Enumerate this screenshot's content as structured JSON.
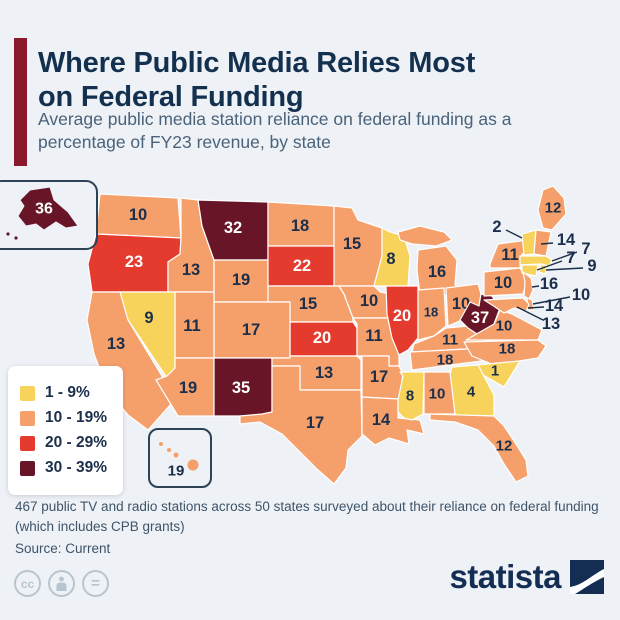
{
  "header": {
    "title": "Where Public Media Relies Most on Federal Funding",
    "subtitle": "Average public media station reliance on federal funding as a percentage of FY23 revenue, by state"
  },
  "legend": {
    "items": [
      {
        "label": "1 - 9%",
        "color": "#F8D35C",
        "min": 0,
        "max": 9
      },
      {
        "label": "10 - 19%",
        "color": "#F5A06B",
        "min": 10,
        "max": 19
      },
      {
        "label": "20 - 29%",
        "color": "#E53A2E",
        "min": 20,
        "max": 29
      },
      {
        "label": "30 - 39%",
        "color": "#671527",
        "min": 30,
        "max": 39
      }
    ]
  },
  "chart_data": {
    "type": "choropleth-map",
    "title": "Where Public Media Relies Most on Federal Funding",
    "unit": "percent of FY23 revenue",
    "states": [
      {
        "id": "WA",
        "name": "Washington",
        "value": 10
      },
      {
        "id": "OR",
        "name": "Oregon",
        "value": 23
      },
      {
        "id": "CA",
        "name": "California",
        "value": 13
      },
      {
        "id": "NV",
        "name": "Nevada",
        "value": 9
      },
      {
        "id": "ID",
        "name": "Idaho",
        "value": 13
      },
      {
        "id": "MT",
        "name": "Montana",
        "value": 32
      },
      {
        "id": "WY",
        "name": "Wyoming",
        "value": 19
      },
      {
        "id": "UT",
        "name": "Utah",
        "value": 11
      },
      {
        "id": "CO",
        "name": "Colorado",
        "value": 17
      },
      {
        "id": "AZ",
        "name": "Arizona",
        "value": 19
      },
      {
        "id": "NM",
        "name": "New Mexico",
        "value": 35
      },
      {
        "id": "ND",
        "name": "North Dakota",
        "value": 18
      },
      {
        "id": "SD",
        "name": "South Dakota",
        "value": 22
      },
      {
        "id": "NE",
        "name": "Nebraska",
        "value": 15
      },
      {
        "id": "KS",
        "name": "Kansas",
        "value": 20
      },
      {
        "id": "OK",
        "name": "Oklahoma",
        "value": 13
      },
      {
        "id": "TX",
        "name": "Texas",
        "value": 17
      },
      {
        "id": "MN",
        "name": "Minnesota",
        "value": 15
      },
      {
        "id": "IA",
        "name": "Iowa",
        "value": 10
      },
      {
        "id": "MO",
        "name": "Missouri",
        "value": 11
      },
      {
        "id": "AR",
        "name": "Arkansas",
        "value": 17
      },
      {
        "id": "LA",
        "name": "Louisiana",
        "value": 14
      },
      {
        "id": "WI",
        "name": "Wisconsin",
        "value": 8
      },
      {
        "id": "IL",
        "name": "Illinois",
        "value": 20
      },
      {
        "id": "MI",
        "name": "Michigan",
        "value": 16
      },
      {
        "id": "IN",
        "name": "Indiana",
        "value": 18
      },
      {
        "id": "OH",
        "name": "Ohio",
        "value": 10
      },
      {
        "id": "KY",
        "name": "Kentucky",
        "value": 11
      },
      {
        "id": "TN",
        "name": "Tennessee",
        "value": 18
      },
      {
        "id": "MS",
        "name": "Mississippi",
        "value": 8
      },
      {
        "id": "AL",
        "name": "Alabama",
        "value": 10
      },
      {
        "id": "GA",
        "name": "Georgia",
        "value": 4
      },
      {
        "id": "SC",
        "name": "South Carolina",
        "value": 1
      },
      {
        "id": "NC",
        "name": "North Carolina",
        "value": 18
      },
      {
        "id": "VA",
        "name": "Virginia",
        "value": 10
      },
      {
        "id": "WV",
        "name": "West Virginia",
        "value": 37
      },
      {
        "id": "FL",
        "name": "Florida",
        "value": 12
      },
      {
        "id": "PA",
        "name": "Pennsylvania",
        "value": 10
      },
      {
        "id": "NY",
        "name": "New York",
        "value": 11
      },
      {
        "id": "ME",
        "name": "Maine",
        "value": 12
      },
      {
        "id": "VT",
        "name": "Vermont",
        "value": 2
      },
      {
        "id": "NH",
        "name": "New Hampshire",
        "value": 14
      },
      {
        "id": "MA",
        "name": "Massachusetts",
        "value": 7
      },
      {
        "id": "CT",
        "name": "Connecticut",
        "value": 7
      },
      {
        "id": "RI",
        "name": "Rhode Island",
        "value": 9
      },
      {
        "id": "NJ",
        "name": "New Jersey",
        "value": 16
      },
      {
        "id": "DE",
        "name": "Delaware",
        "value": 10
      },
      {
        "id": "MD",
        "name": "Maryland",
        "value": 14
      },
      {
        "id": "DC",
        "name": "District of Columbia",
        "value": 13
      },
      {
        "id": "AK",
        "name": "Alaska",
        "value": 36
      },
      {
        "id": "HI",
        "name": "Hawaii",
        "value": 19
      }
    ]
  },
  "footer": {
    "note": "467 public TV and radio stations across 50 states surveyed about their reliance on federal funding (which includes CPB grants)",
    "source": "Source: Current",
    "icons": [
      {
        "name": "cc-icon",
        "glyph": "cc"
      },
      {
        "name": "attribution-icon",
        "glyph": ""
      },
      {
        "name": "equals-icon",
        "glyph": "="
      }
    ]
  },
  "branding": {
    "logo_text": "statista"
  },
  "colors": {
    "background": "#EEF1F6",
    "title": "#14304F",
    "subtitle": "#4A627A",
    "accent_bar": "#8A1A2B",
    "label_dark": "#1B2E4A",
    "label_light": "#FFFFFF",
    "state_border": "#FFFFFF",
    "inset_border": "#2C4257",
    "logo": "#132E52"
  }
}
